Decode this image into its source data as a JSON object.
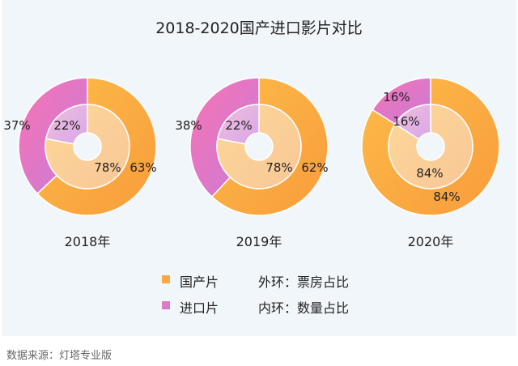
{
  "chart_data": {
    "type": "pie",
    "title": "2018-2020国产进口影片对比",
    "colors": {
      "domestic_outer": [
        "#fdbb48",
        "#f89c3c"
      ],
      "imported_outer": [
        "#f774b4",
        "#c97ad8"
      ],
      "domestic_inner": [
        "#fdd79a",
        "#f8c796"
      ],
      "imported_inner": [
        "#efc0dc",
        "#d9a6e8"
      ]
    },
    "series_names": [
      "国产片",
      "进口片"
    ],
    "charts": [
      {
        "label": "2018年",
        "outer": {
          "domestic": 63,
          "imported": 37
        },
        "inner": {
          "domestic": 78,
          "imported": 22
        },
        "labels": {
          "outer_domestic": "63%",
          "outer_imported": "37%",
          "inner_domestic": "78%",
          "inner_imported": "22%"
        }
      },
      {
        "label": "2019年",
        "outer": {
          "domestic": 62,
          "imported": 38
        },
        "inner": {
          "domestic": 78,
          "imported": 22
        },
        "labels": {
          "outer_domestic": "62%",
          "outer_imported": "38%",
          "inner_domestic": "78%",
          "inner_imported": "22%"
        }
      },
      {
        "label": "2020年",
        "outer": {
          "domestic": 84,
          "imported": 16
        },
        "inner": {
          "domestic": 84,
          "imported": 16
        },
        "labels": {
          "outer_domestic": "84%",
          "outer_imported": "16%",
          "inner_domestic": "84%",
          "inner_imported": "16%"
        }
      }
    ],
    "legend": [
      {
        "label": "国产片",
        "color": "#fba844",
        "note": "外环：票房占比"
      },
      {
        "label": "进口片",
        "color": "#d97ad0",
        "note": "内环：数量占比"
      }
    ]
  },
  "source": "数据来源：灯塔专业版"
}
